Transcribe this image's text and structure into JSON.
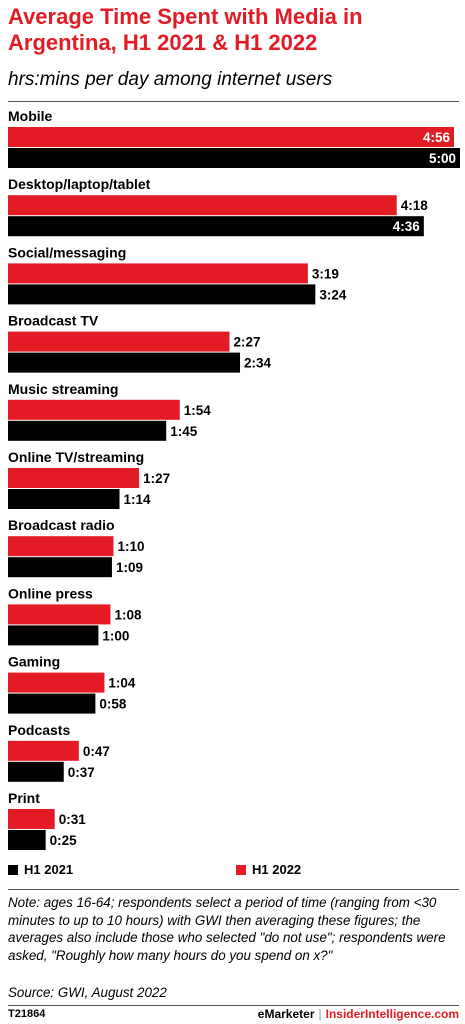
{
  "header": {
    "title": "Average Time Spent with Media in Argentina, H1 2021 & H1 2022",
    "subtitle": "hrs:mins per day among internet users"
  },
  "colors": {
    "h1_2022": "#e21b24",
    "h1_2021": "#000000",
    "title": "#e21b24"
  },
  "legend": [
    {
      "label": "H1 2021",
      "color": "#000000"
    },
    {
      "label": "H1 2022",
      "color": "#e21b24"
    }
  ],
  "chart_data": {
    "type": "bar",
    "orientation": "horizontal",
    "categories": [
      "Mobile",
      "Desktop/laptop/tablet",
      "Social/messaging",
      "Broadcast TV",
      "Music streaming",
      "Online TV/streaming",
      "Broadcast radio",
      "Online press",
      "Gaming",
      "Podcasts",
      "Print"
    ],
    "series": [
      {
        "name": "H1 2022",
        "color": "#e21b24",
        "values": [
          296,
          258,
          199,
          147,
          114,
          87,
          70,
          68,
          64,
          47,
          31
        ],
        "labels": [
          "4:56",
          "4:18",
          "3:19",
          "2:27",
          "1:54",
          "1:27",
          "1:10",
          "1:08",
          "1:04",
          "0:47",
          "0:31"
        ]
      },
      {
        "name": "H1 2021",
        "color": "#000000",
        "values": [
          300,
          276,
          204,
          154,
          105,
          74,
          69,
          60,
          58,
          37,
          25
        ],
        "labels": [
          "5:00",
          "4:36",
          "3:24",
          "2:34",
          "1:45",
          "1:14",
          "1:09",
          "1:00",
          "0:58",
          "0:37",
          "0:25"
        ]
      }
    ],
    "value_units": "minutes per day",
    "xlim": [
      0,
      300
    ],
    "grid": false,
    "legend_position": "bottom"
  },
  "footer": {
    "note": "Note: ages 16-64; respondents select a period of time (ranging from <30 minutes to up to 10 hours) with GWI then averaging these figures; the averages also include those who selected \"do not use\"; respondents were asked, \"Roughly how many hours do you spend on x?\"",
    "source": "Source:  GWI, August 2022",
    "chart_id": "T21864",
    "brand_emarketer": "eMarketer",
    "brand_separator": "|",
    "brand_insider": "InsiderIntelligence.com"
  }
}
